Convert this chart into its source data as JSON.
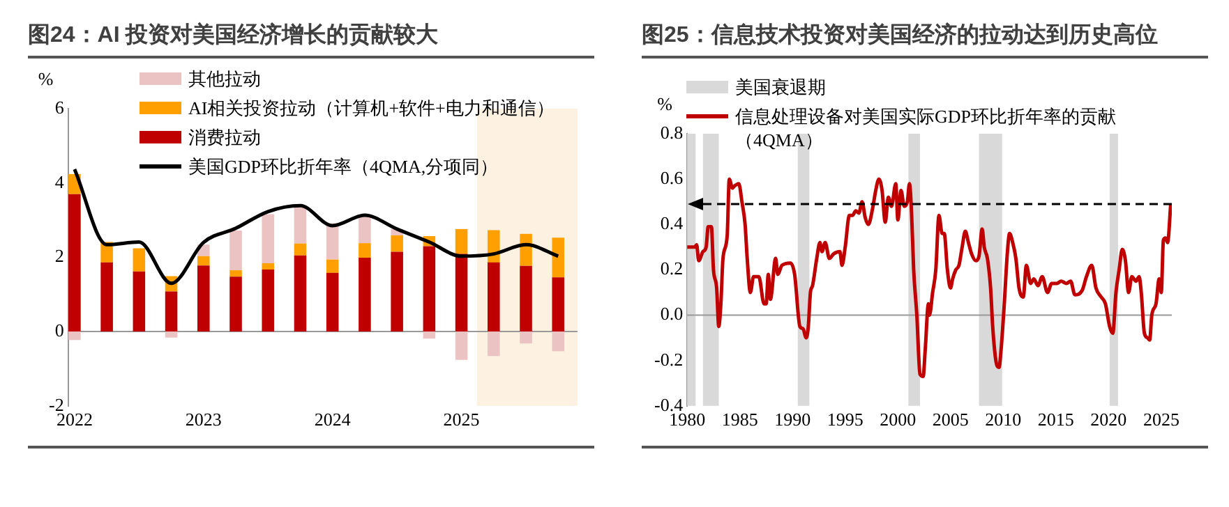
{
  "chart_data": [
    {
      "type": "bar",
      "title": "图24：AI 投资对美国经济增长的贡献较大",
      "ylabel": "%",
      "stacked": true,
      "legend": "top",
      "grid": false,
      "x": [
        2022,
        2022.25,
        2022.5,
        2022.75,
        2023,
        2023.25,
        2023.5,
        2023.75,
        2024,
        2024.25,
        2024.5,
        2024.75,
        2025,
        2025.25,
        2025.5,
        2025.75
      ],
      "xlim": [
        2021.95,
        2025.9
      ],
      "xticks": [
        2022,
        2023,
        2024,
        2025
      ],
      "ylim": [
        -2,
        6
      ],
      "yticks": [
        -2,
        0,
        2,
        4,
        6
      ],
      "series": [
        {
          "name": "消费拉动",
          "type": "bar",
          "color": "#c00000",
          "values": [
            3.7,
            1.86,
            1.62,
            1.08,
            1.78,
            1.48,
            1.67,
            2.05,
            1.58,
            1.99,
            2.15,
            2.3,
            2.09,
            1.86,
            1.77,
            1.46
          ]
        },
        {
          "name": "AI相关投资拉动（计算机+软件+电力和通信）",
          "type": "bar",
          "color": "#ffa000",
          "values": [
            0.54,
            0.55,
            0.62,
            0.41,
            0.25,
            0.17,
            0.17,
            0.32,
            0.36,
            0.39,
            0.44,
            0.27,
            0.67,
            0.87,
            0.86,
            1.07
          ]
        },
        {
          "name": "其他拉动",
          "type": "bar",
          "color": "#ebc3c3",
          "values": [
            -0.23,
            0,
            0,
            -0.16,
            0.31,
            1.07,
            1.32,
            0.98,
            0.97,
            0.72,
            0.17,
            -0.19,
            -0.76,
            -0.66,
            -0.32,
            -0.53
          ]
        },
        {
          "name": "美国GDP环比折年率（4QMA,分项同）",
          "type": "line",
          "color": "#000000",
          "values": [
            4.37,
            2.34,
            2.41,
            1.3,
            2.4,
            2.78,
            3.23,
            3.39,
            2.85,
            3.13,
            2.76,
            2.41,
            2.03,
            2.09,
            2.34,
            2.03
          ]
        }
      ],
      "bands": [
        {
          "axis": "x",
          "from": 2025.12,
          "to": 2025.9,
          "color": "#fdf2e2"
        }
      ],
      "ref_lines": [
        {
          "axis": "y",
          "value": 0,
          "color": "#999999"
        }
      ]
    },
    {
      "type": "line",
      "title": "图25：信息技术投资对美国经济的拉动达到历史高位",
      "ylabel": "%",
      "legend": "top left",
      "grid": false,
      "xlim": [
        1980,
        2026
      ],
      "xticks": [
        1980,
        1985,
        1990,
        1995,
        2000,
        2005,
        2010,
        2015,
        2020,
        2025
      ],
      "ylim": [
        -0.4,
        0.8
      ],
      "yticks": [
        {
          "value": -0.4,
          "label": "-0.4"
        },
        {
          "value": -0.2,
          "label": "-0.2"
        },
        {
          "value": 0,
          "label": "0.0"
        },
        {
          "value": 0.2,
          "label": "0.2"
        },
        {
          "value": 0.4,
          "label": "0.4"
        },
        {
          "value": 0.6,
          "label": "0.6"
        },
        {
          "value": 0.8,
          "label": "0.8"
        }
      ],
      "series": [
        {
          "name": "信息处理设备对美国实际GDP环比折年率的贡献（4QMA）",
          "color": "#c00000",
          "x": [
            1980.0,
            1980.7,
            1980.9,
            1981.1,
            1981.5,
            1981.8,
            1982.0,
            1982.3,
            1982.5,
            1982.8,
            1983.0,
            1983.2,
            1983.4,
            1983.8,
            1984.0,
            1984.3,
            1984.5,
            1984.9,
            1985.2,
            1985.5,
            1985.7,
            1986.0,
            1986.3,
            1986.8,
            1987.3,
            1987.5,
            1987.7,
            1987.9,
            1988.4,
            1988.6,
            1989.0,
            1989.8,
            1990.2,
            1990.7,
            1991.0,
            1991.3,
            1991.5,
            1991.7,
            1991.9,
            1992.3,
            1992.6,
            1992.8,
            1993.1,
            1993.5,
            1993.9,
            1994.5,
            1994.7,
            1995.0,
            1995.4,
            1995.7,
            1996.0,
            1996.3,
            1996.6,
            1996.9,
            1997.2,
            1997.6,
            1997.9,
            1998.2,
            1998.5,
            1998.8,
            1999.1,
            1999.4,
            1999.8,
            2000.0,
            2000.3,
            2000.6,
            2000.9,
            2001.1,
            2001.3,
            2001.5,
            2001.8,
            2002.1,
            2002.4,
            2002.6,
            2002.9,
            2003.0,
            2003.3,
            2003.6,
            2003.9,
            2004.2,
            2004.4,
            2004.7,
            2005.0,
            2005.2,
            2005.5,
            2005.8,
            2006.1,
            2006.4,
            2006.7,
            2007.0,
            2007.4,
            2007.7,
            2008.0,
            2008.2,
            2008.5,
            2008.8,
            2009.0,
            2009.3,
            2009.6,
            2009.8,
            2010.1,
            2010.4,
            2010.6,
            2010.9,
            2011.2,
            2011.5,
            2011.9,
            2012.2,
            2012.6,
            2012.9,
            2013.3,
            2013.7,
            2014.2,
            2014.6,
            2015.1,
            2015.5,
            2016.0,
            2016.4,
            2016.8,
            2017.5,
            2017.9,
            2018.4,
            2018.8,
            2019.3,
            2019.7,
            2020.1,
            2020.4,
            2020.7,
            2021.0,
            2021.3,
            2021.6,
            2021.9,
            2022.2,
            2022.6,
            2022.9,
            2023.1,
            2023.4,
            2023.7,
            2023.9,
            2024.1,
            2024.5,
            2024.8,
            2025.0,
            2025.2,
            2025.4,
            2025.6,
            2025.9
          ],
          "values": [
            0.3,
            0.3,
            0.31,
            0.24,
            0.28,
            0.3,
            0.39,
            0.39,
            0.2,
            0.12,
            -0.05,
            0.05,
            0.25,
            0.35,
            0.6,
            0.56,
            0.57,
            0.58,
            0.5,
            0.4,
            0.25,
            0.1,
            0.17,
            0.17,
            0.05,
            0.05,
            0.18,
            0.07,
            0.25,
            0.18,
            0.22,
            0.23,
            0.18,
            -0.05,
            -0.06,
            -0.1,
            -0.05,
            0.1,
            0.13,
            0.25,
            0.32,
            0.28,
            0.32,
            0.25,
            0.27,
            0.28,
            0.22,
            0.3,
            0.44,
            0.44,
            0.46,
            0.45,
            0.5,
            0.43,
            0.4,
            0.47,
            0.55,
            0.6,
            0.55,
            0.41,
            0.52,
            0.48,
            0.58,
            0.42,
            0.55,
            0.48,
            0.5,
            0.58,
            0.45,
            0.2,
            0.0,
            -0.26,
            -0.27,
            -0.15,
            0.05,
            0.0,
            0.1,
            0.2,
            0.44,
            0.36,
            0.36,
            0.2,
            0.12,
            0.16,
            0.2,
            0.22,
            0.3,
            0.37,
            0.32,
            0.27,
            0.24,
            0.26,
            0.38,
            0.3,
            0.25,
            0.12,
            -0.05,
            -0.2,
            -0.23,
            -0.15,
            0.05,
            0.28,
            0.36,
            0.32,
            0.25,
            0.12,
            0.08,
            0.22,
            0.14,
            0.16,
            0.13,
            0.17,
            0.1,
            0.14,
            0.14,
            0.15,
            0.14,
            0.15,
            0.09,
            0.11,
            0.17,
            0.22,
            0.12,
            0.08,
            0.05,
            -0.05,
            -0.08,
            0.1,
            0.2,
            0.29,
            0.24,
            0.1,
            0.17,
            0.15,
            0.17,
            0.1,
            -0.08,
            -0.1,
            -0.11,
            0.0,
            0.05,
            0.16,
            0.1,
            0.33,
            0.34,
            0.32,
            0.49
          ]
        }
      ],
      "bands": [
        {
          "axis": "x",
          "from": 1980,
          "to": 1980.8,
          "color": "#d9d9d9",
          "label": "美国衰退期"
        },
        {
          "axis": "x",
          "from": 1981.5,
          "to": 1983,
          "color": "#d9d9d9"
        },
        {
          "axis": "x",
          "from": 1990.5,
          "to": 1991.6,
          "color": "#d9d9d9"
        },
        {
          "axis": "x",
          "from": 2001,
          "to": 2002.1,
          "color": "#d9d9d9"
        },
        {
          "axis": "x",
          "from": 2007.7,
          "to": 2009.9,
          "color": "#d9d9d9"
        },
        {
          "axis": "x",
          "from": 2020.1,
          "to": 2020.9,
          "color": "#d9d9d9"
        }
      ],
      "ref_lines": [
        {
          "axis": "y",
          "value": 0,
          "color": "#999999"
        },
        {
          "axis": "y",
          "value": 0.49,
          "color": "#000000",
          "line_style": "dashed"
        }
      ]
    }
  ]
}
